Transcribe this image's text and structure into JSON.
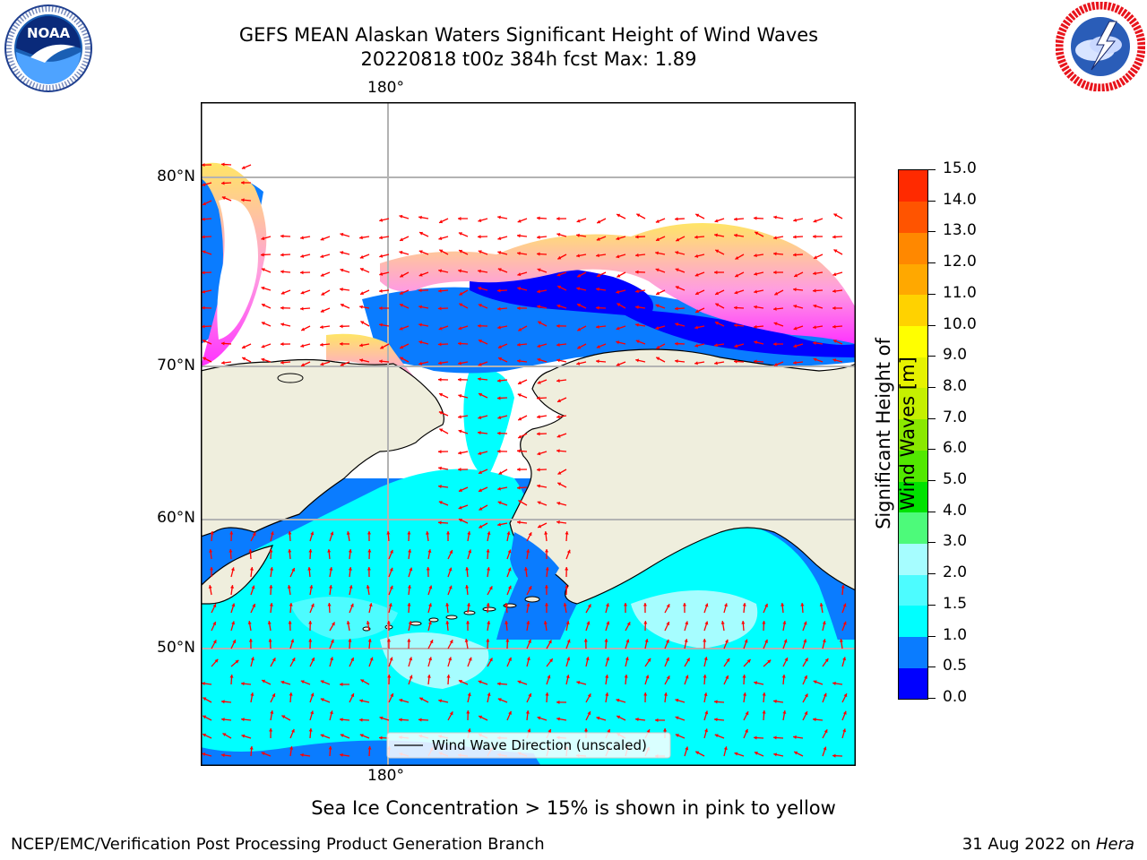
{
  "title": {
    "line1": "GEFS MEAN Alaskan Waters Significant Height of Wind Waves",
    "line2": "20220818 t00z 384h fcst   Max: 1.89"
  },
  "logos": {
    "left": {
      "name": "NOAA",
      "ring_text": "NATIONAL OCEANIC AND ATMOSPHERIC ADMINISTRATION · U.S. DEPARTMENT OF COMMERCE"
    },
    "right": {
      "name": "NATIONAL WEATHER SERVICE"
    }
  },
  "map": {
    "lon_label_top": "180°",
    "lon_label_bottom": "180°",
    "lat_labels": [
      "80°N",
      "70°N",
      "60°N",
      "50°N"
    ],
    "legend": "Wind Wave Direction (unscaled)",
    "colors": {
      "land": "#efeedd",
      "ice_pink": "#ff33ff",
      "ice_yellow": "#ffe566",
      "arrow": "#ff0000",
      "coast": "#000000"
    }
  },
  "colorbar": {
    "label": "Significant Height of Wind Waves [m]",
    "ticks": [
      "0.0",
      "0.5",
      "1.0",
      "1.5",
      "2.0",
      "3.0",
      "4.0",
      "5.0",
      "6.0",
      "7.0",
      "8.0",
      "9.0",
      "10.0",
      "11.0",
      "12.0",
      "13.0",
      "14.0",
      "15.0"
    ],
    "colors": [
      "#0000ff",
      "#0a7cff",
      "#00ffff",
      "#4dfcff",
      "#a6fdff",
      "#4dfa7a",
      "#00e200",
      "#52e800",
      "#8ae800",
      "#c5f000",
      "#e6f200",
      "#ffff00",
      "#ffd200",
      "#ffa800",
      "#ff8800",
      "#ff5400",
      "#ff2a00",
      "#ff0000"
    ]
  },
  "footer": {
    "note": "Sea Ice Concentration > 15% is shown in pink to yellow",
    "branch": "NCEP/EMC/Verification Post Processing Product Generation Branch",
    "date": "31 Aug 2022 on",
    "machine": "Hera"
  }
}
